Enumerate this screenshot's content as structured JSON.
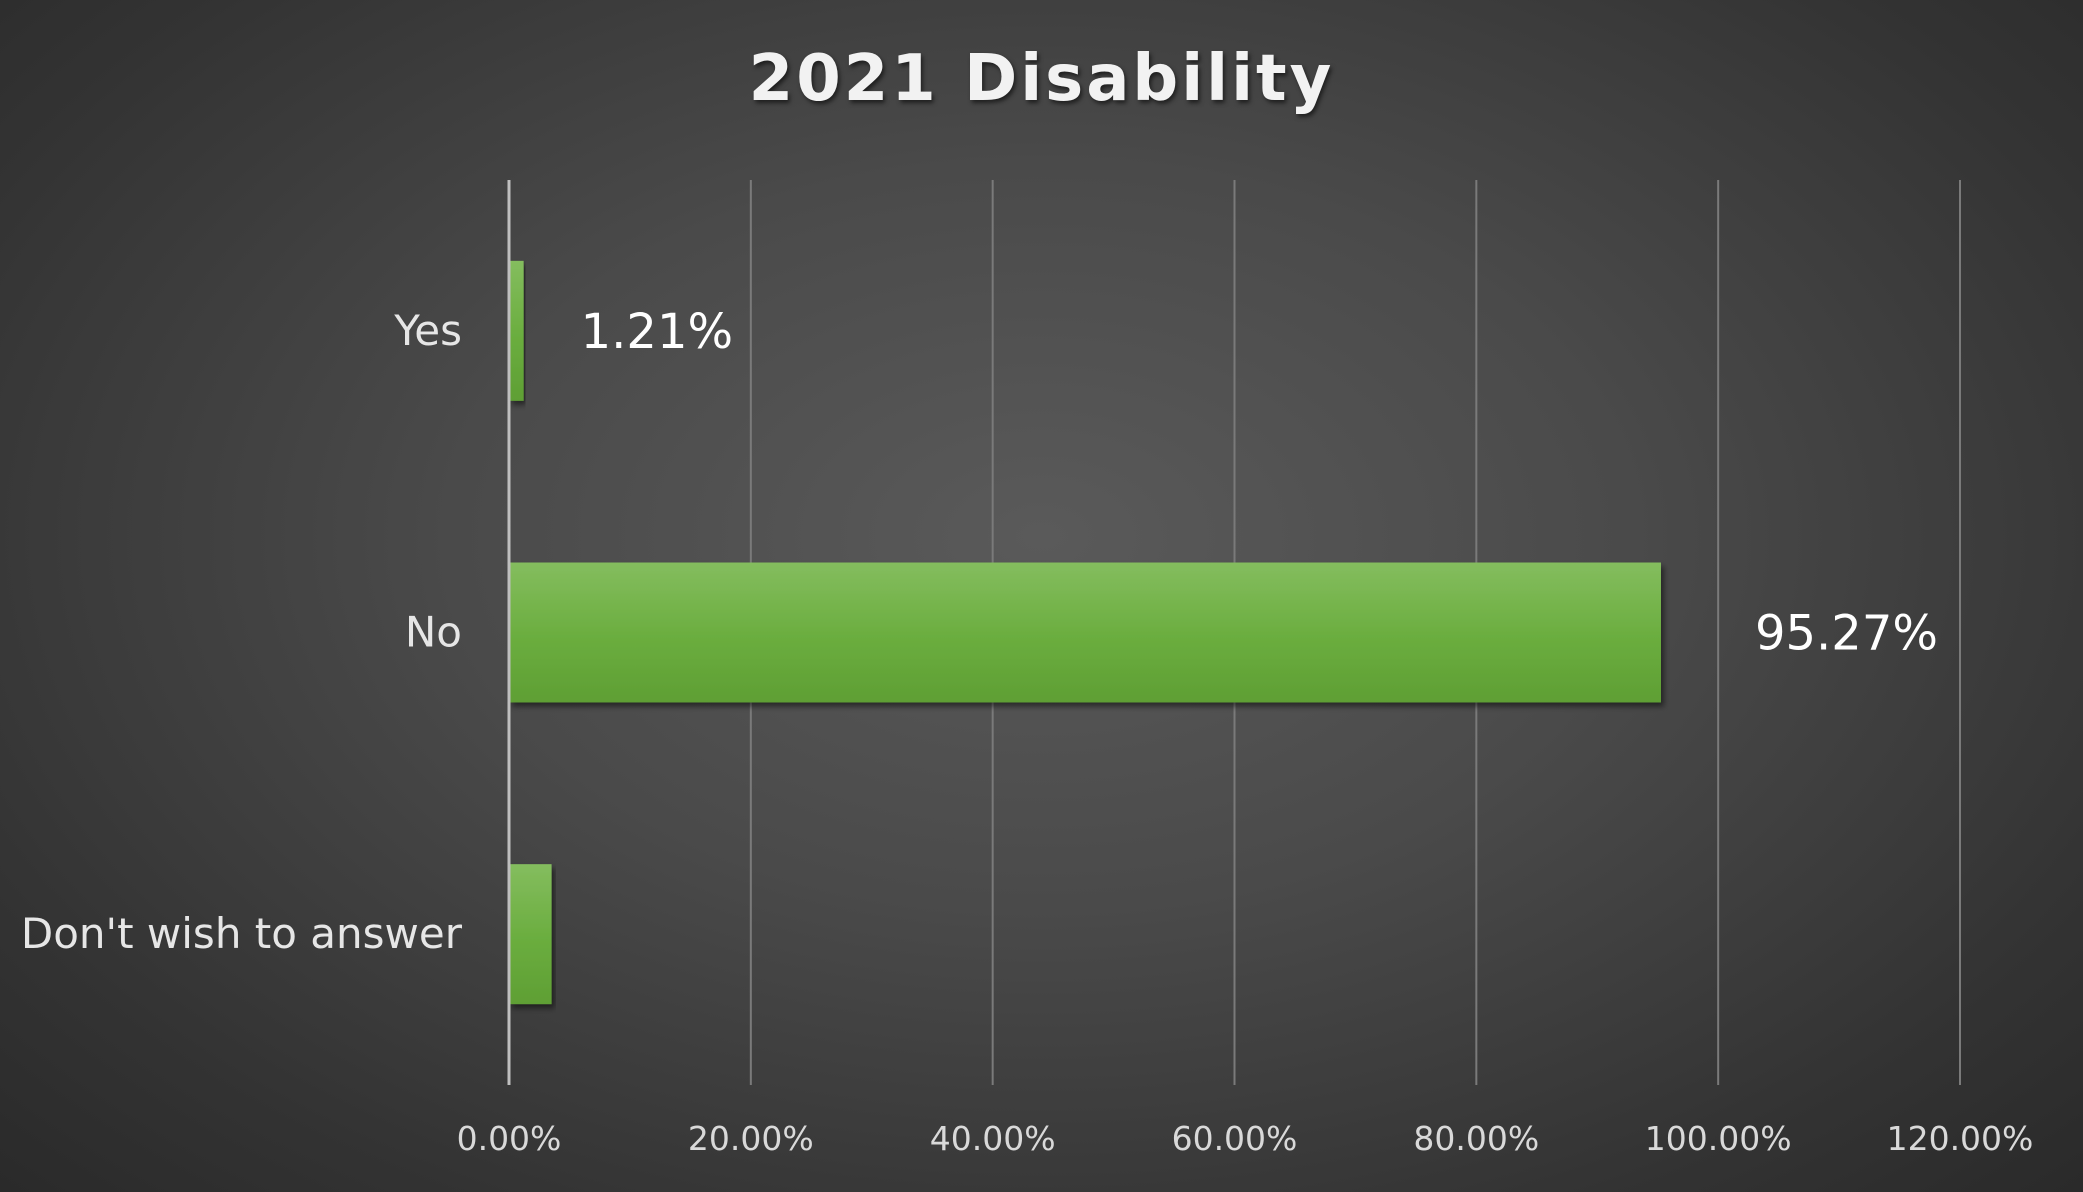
{
  "chart_data": {
    "type": "bar",
    "orientation": "horizontal",
    "title": "2021 Disability",
    "categories": [
      "Yes",
      "No",
      "Don't wish to answer"
    ],
    "values": [
      1.21,
      95.27,
      3.52
    ],
    "data_labels": [
      "1.21%",
      "95.27%",
      ""
    ],
    "x_ticks": [
      "0.00%",
      "20.00%",
      "40.00%",
      "60.00%",
      "80.00%",
      "100.00%",
      "120.00%"
    ],
    "xlim": [
      0,
      120
    ],
    "xlabel": "",
    "ylabel": "",
    "grid": "vertical",
    "bar_color": "#6aaa3a"
  }
}
